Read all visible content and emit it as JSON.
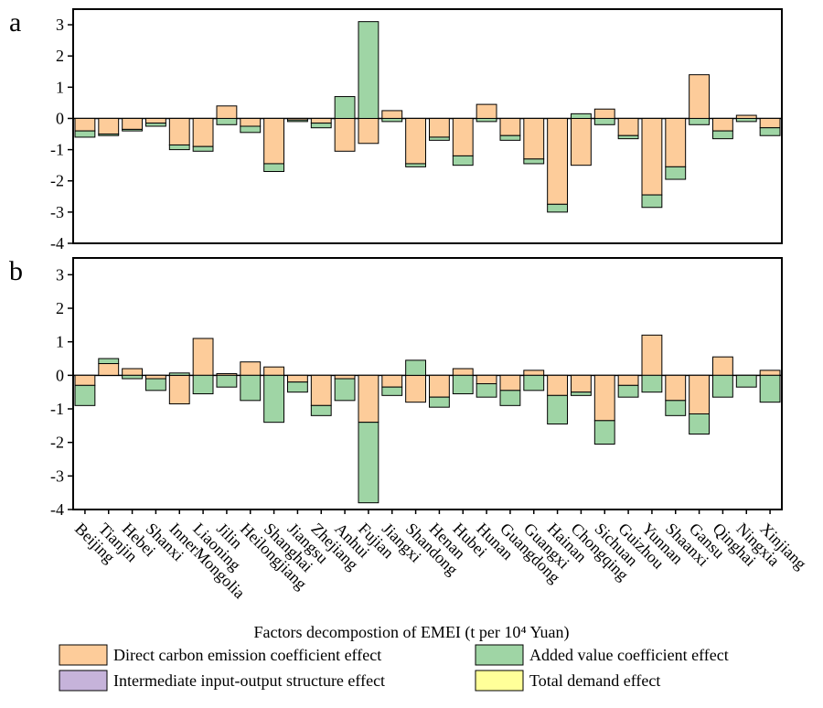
{
  "chart_data": [
    {
      "type": "bar",
      "stacked": true,
      "panel_label": "a",
      "ylim": [
        -4,
        3.5
      ],
      "yticks": [
        -4,
        -3,
        -2,
        -1,
        0,
        1,
        2,
        3
      ],
      "legend_title": "Factors decompostion of EMEI (t per 10⁴ Yuan)",
      "series": [
        {
          "name": "Direct carbon emission coefficient effect",
          "color": "#fdcc9a",
          "values": [
            -0.4,
            -0.5,
            -0.35,
            -0.15,
            -0.85,
            -0.9,
            0.4,
            -0.25,
            -1.45,
            -0.05,
            -0.15,
            -1.05,
            -0.8,
            0.25,
            -1.45,
            -0.6,
            -1.2,
            0.45,
            -0.55,
            -1.3,
            -2.75,
            -1.5,
            0.3,
            -0.55,
            -2.45,
            -1.55,
            1.4,
            -0.4,
            0.1,
            -0.3
          ]
        },
        {
          "name": "Added value coefficient effect",
          "color": "#9fd5a5",
          "values": [
            -0.2,
            -0.05,
            -0.05,
            -0.1,
            -0.15,
            -0.15,
            -0.2,
            -0.2,
            -0.25,
            -0.05,
            -0.15,
            0.7,
            3.1,
            -0.1,
            -0.1,
            -0.1,
            -0.3,
            -0.1,
            -0.15,
            -0.15,
            -0.25,
            0.15,
            -0.2,
            -0.1,
            -0.4,
            -0.4,
            -0.2,
            -0.25,
            -0.1,
            -0.25
          ]
        },
        {
          "name": "Intermediate input-output structure effect",
          "color": "#c6b3da",
          "values": [
            0,
            0,
            0,
            0,
            0,
            0,
            0,
            0,
            0,
            0,
            0,
            0,
            0,
            0,
            0,
            0,
            0,
            0,
            0,
            0,
            0,
            0,
            0,
            0,
            0,
            0,
            0,
            0,
            0,
            0
          ]
        },
        {
          "name": "Total demand effect",
          "color": "#ffff99",
          "values": [
            0,
            0,
            0,
            0,
            0,
            0,
            0,
            0,
            0,
            0,
            0,
            0,
            0,
            0,
            0,
            0,
            0,
            0,
            0,
            0,
            0,
            0,
            0,
            0,
            0,
            0,
            0,
            0,
            0,
            0
          ]
        }
      ]
    },
    {
      "type": "bar",
      "stacked": true,
      "panel_label": "b",
      "ylim": [
        -4,
        3.5
      ],
      "yticks": [
        -4,
        -3,
        -2,
        -1,
        0,
        1,
        2,
        3
      ],
      "categories": [
        "Beijing",
        "Tianjin",
        "Hebei",
        "Shanxi",
        "InnerMongolia",
        "Liaoning",
        "Jilin",
        "Heilongjiang",
        "Shanghai",
        "Jiangsu",
        "Zhejiang",
        "Anhui",
        "Fujian",
        "Jiangxi",
        "Shandong",
        "Henan",
        "Hubei",
        "Hunan",
        "Guangdong",
        "Guangxi",
        "Hainan",
        "Chongqing",
        "Sichuan",
        "Guizhou",
        "Yunnan",
        "Shaanxi",
        "Gansu",
        "Qinghai",
        "Ningxia",
        "Xinjiang"
      ],
      "series": [
        {
          "color": "#fdcc9a",
          "values": [
            -0.3,
            0.35,
            0.2,
            -0.1,
            -0.85,
            1.1,
            0.05,
            0.4,
            0.25,
            -0.2,
            -0.9,
            -0.1,
            -1.4,
            -0.35,
            -0.8,
            -0.65,
            0.2,
            -0.25,
            -0.45,
            0.15,
            -0.6,
            -0.5,
            -1.35,
            -0.3,
            1.2,
            -0.75,
            -1.15,
            0.55,
            0,
            0.15
          ]
        },
        {
          "color": "#9fd5a5",
          "values": [
            -0.6,
            0.15,
            -0.1,
            -0.35,
            0.07,
            -0.55,
            -0.35,
            -0.75,
            -1.4,
            -0.3,
            -0.3,
            -0.65,
            -2.4,
            -0.25,
            0.45,
            -0.3,
            -0.55,
            -0.4,
            -0.45,
            -0.45,
            -0.85,
            -0.1,
            -0.7,
            -0.35,
            -0.5,
            -0.45,
            -0.6,
            -0.65,
            -0.35,
            -0.8
          ]
        },
        {
          "color": "#c6b3da",
          "values": [
            0,
            0,
            0,
            0,
            0,
            0,
            0,
            0,
            0,
            0,
            0,
            0,
            0,
            0,
            0,
            0,
            0,
            0,
            0,
            0,
            0,
            0,
            0,
            0,
            0,
            0,
            0,
            0,
            0,
            0
          ]
        },
        {
          "color": "#ffff99",
          "values": [
            0,
            0,
            0,
            0,
            0,
            0,
            0,
            0,
            0,
            0,
            0,
            0,
            0,
            0,
            0,
            0,
            0,
            0,
            0,
            0,
            0,
            0,
            0,
            0,
            0,
            0,
            0,
            0,
            0,
            0
          ]
        }
      ]
    }
  ]
}
